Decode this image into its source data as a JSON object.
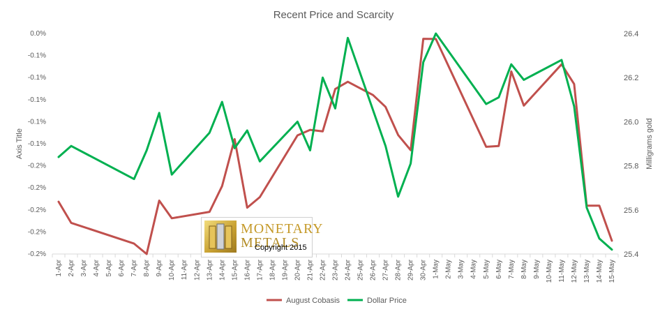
{
  "chart_data": {
    "type": "line",
    "title": "Recent Price and Scarcity",
    "ylabel_left": "Axis Title",
    "ylabel_right": "Milligrams gold",
    "yticks_left": [
      "0.0%",
      "-0.1%",
      "-0.1%",
      "-0.1%",
      "-0.1%",
      "-0.1%",
      "-0.2%",
      "-0.2%",
      "-0.2%",
      "-0.2%",
      "-0.2%"
    ],
    "yticks_right": [
      "26.4",
      "26.2",
      "26.0",
      "25.8",
      "25.6",
      "25.4"
    ],
    "ylim_left": [
      -0.2,
      0.0
    ],
    "ylim_right": [
      25.4,
      26.4
    ],
    "grid": false,
    "legend_position": "bottom",
    "categories": [
      "1-Apr",
      "2-Apr",
      "3-Apr",
      "4-Apr",
      "5-Apr",
      "6-Apr",
      "7-Apr",
      "8-Apr",
      "9-Apr",
      "10-Apr",
      "11-Apr",
      "12-Apr",
      "13-Apr",
      "14-Apr",
      "15-Apr",
      "16-Apr",
      "17-Apr",
      "18-Apr",
      "19-Apr",
      "20-Apr",
      "21-Apr",
      "22-Apr",
      "23-Apr",
      "24-Apr",
      "25-Apr",
      "26-Apr",
      "27-Apr",
      "28-Apr",
      "29-Apr",
      "30-Apr",
      "1-May",
      "2-May",
      "3-May",
      "4-May",
      "5-May",
      "6-May",
      "7-May",
      "8-May",
      "9-May",
      "10-May",
      "11-May",
      "12-May",
      "13-May",
      "14-May",
      "15-May"
    ],
    "series": [
      {
        "name": "August Cobasis",
        "axis": "left",
        "color": "#c0504d",
        "points": [
          [
            0,
            -0.1526
          ],
          [
            1,
            -0.1718
          ],
          [
            6,
            -0.1906
          ],
          [
            7,
            -0.2
          ],
          [
            8,
            -0.1516
          ],
          [
            9,
            -0.1676
          ],
          [
            12,
            -0.1618
          ],
          [
            13,
            -0.1384
          ],
          [
            14,
            -0.0958
          ],
          [
            15,
            -0.158
          ],
          [
            16,
            -0.1484
          ],
          [
            19,
            -0.0924
          ],
          [
            20,
            -0.0874
          ],
          [
            21,
            -0.0888
          ],
          [
            22,
            -0.0504
          ],
          [
            23,
            -0.0438
          ],
          [
            25,
            -0.0558
          ],
          [
            26,
            -0.0666
          ],
          [
            27,
            -0.092
          ],
          [
            28,
            -0.1058
          ],
          [
            29,
            -0.0048
          ],
          [
            30,
            -0.005
          ],
          [
            34,
            -0.1028
          ],
          [
            35,
            -0.102
          ],
          [
            36,
            -0.0344
          ],
          [
            37,
            -0.0654
          ],
          [
            40,
            -0.028
          ],
          [
            41,
            -0.0458
          ],
          [
            42,
            -0.1562
          ],
          [
            43,
            -0.1562
          ],
          [
            44,
            -0.188
          ]
        ]
      },
      {
        "name": "Dollar Price",
        "axis": "right",
        "color": "#00b050",
        "points": [
          [
            0,
            25.84
          ],
          [
            1,
            25.89
          ],
          [
            6,
            25.74
          ],
          [
            7,
            25.87
          ],
          [
            8,
            26.04
          ],
          [
            9,
            25.76
          ],
          [
            12,
            25.95
          ],
          [
            13,
            26.09
          ],
          [
            14,
            25.88
          ],
          [
            15,
            25.96
          ],
          [
            16,
            25.82
          ],
          [
            19,
            26.0
          ],
          [
            20,
            25.87
          ],
          [
            21,
            26.2
          ],
          [
            22,
            26.06
          ],
          [
            23,
            26.38
          ],
          [
            26,
            25.89
          ],
          [
            27,
            25.66
          ],
          [
            28,
            25.81
          ],
          [
            29,
            26.27
          ],
          [
            30,
            26.4
          ],
          [
            34,
            26.08
          ],
          [
            35,
            26.11
          ],
          [
            36,
            26.26
          ],
          [
            37,
            26.19
          ],
          [
            40,
            26.28
          ],
          [
            41,
            26.07
          ],
          [
            42,
            25.61
          ],
          [
            43,
            25.47
          ],
          [
            44,
            25.42
          ]
        ]
      }
    ]
  },
  "watermark": {
    "brand_line1": "MONETARY",
    "brand_line2": "METALS",
    "copyright": "Copyright 2015"
  }
}
